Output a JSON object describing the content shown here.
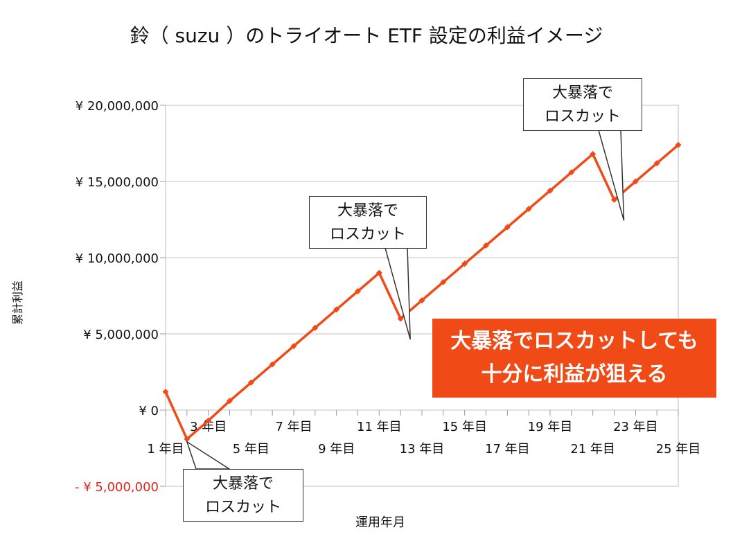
{
  "chart_data": {
    "type": "line",
    "title": "鈴（ suzu ）のトライオート ETF 設定の利益イメージ",
    "xlabel": "運用年月",
    "ylabel": "累計利益",
    "categories": [
      "1 年目",
      "2 年目",
      "3 年目",
      "4 年目",
      "5 年目",
      "6 年目",
      "7 年目",
      "8 年目",
      "9 年目",
      "10 年目",
      "11 年目",
      "12 年目",
      "13 年目",
      "14 年目",
      "15 年目",
      "16 年目",
      "17 年目",
      "18 年目",
      "19 年目",
      "20 年目",
      "21 年目",
      "22 年目",
      "23 年目",
      "24 年目",
      "25 年目"
    ],
    "tick_labels_upper": [
      "3 年目",
      "7 年目",
      "11 年目",
      "15 年目",
      "19 年目",
      "23 年目"
    ],
    "tick_labels_lower": [
      "1 年目",
      "5 年目",
      "9 年目",
      "13 年目",
      "17 年目",
      "21 年目",
      "25 年目"
    ],
    "series": [
      {
        "values": [
          1200000,
          -1900000,
          -700000,
          600000,
          1800000,
          3000000,
          4200000,
          5400000,
          6600000,
          7800000,
          9000000,
          6000000,
          7200000,
          8400000,
          9600000,
          10800000,
          12000000,
          13200000,
          14400000,
          15600000,
          16800000,
          13800000,
          15000000,
          16200000,
          17400000
        ],
        "color": "#f04a17"
      }
    ],
    "ylim": [
      -5000000,
      20000000
    ],
    "yticks": [
      {
        "value": 20000000,
        "label": "¥ 20,000,000"
      },
      {
        "value": 15000000,
        "label": "¥ 15,000,000"
      },
      {
        "value": 10000000,
        "label": "¥ 10,000,000"
      },
      {
        "value": 5000000,
        "label": "¥ 5,000,000"
      },
      {
        "value": 0,
        "label": "¥ 0"
      },
      {
        "value": -5000000,
        "label": "- ¥ 5,000,000"
      }
    ],
    "grid": true,
    "annotations": [
      {
        "line1": "大暴落で",
        "line2": "ロスカット",
        "at_index": 1
      },
      {
        "line1": "大暴落で",
        "line2": "ロスカット",
        "at_index": 11
      },
      {
        "line1": "大暴落で",
        "line2": "ロスカット",
        "at_index": 21
      }
    ],
    "highlight": {
      "line1": "大暴落でロスカットしても",
      "line2": "十分に利益が狙える"
    }
  }
}
